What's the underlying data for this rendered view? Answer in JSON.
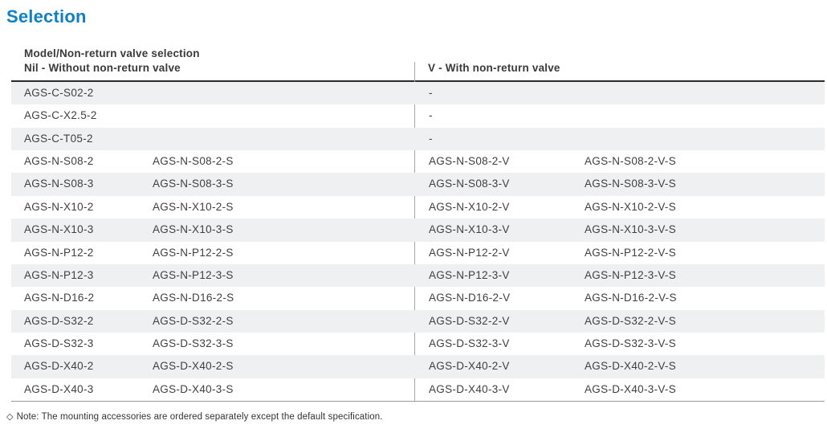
{
  "page": {
    "title": "Selection"
  },
  "table": {
    "header": {
      "left_line1": "Model/Non-return valve selection",
      "left_line2": "Nil - Without non-return valve",
      "right": "V - With non-return valve"
    },
    "rows": [
      {
        "c1": "AGS-C-S02-2",
        "c2": "",
        "c3": "-",
        "c4": ""
      },
      {
        "c1": "AGS-C-X2.5-2",
        "c2": "",
        "c3": "-",
        "c4": ""
      },
      {
        "c1": "AGS-C-T05-2",
        "c2": "",
        "c3": "-",
        "c4": ""
      },
      {
        "c1": "AGS-N-S08-2",
        "c2": "AGS-N-S08-2-S",
        "c3": "AGS-N-S08-2-V",
        "c4": "AGS-N-S08-2-V-S"
      },
      {
        "c1": "AGS-N-S08-3",
        "c2": "AGS-N-S08-3-S",
        "c3": "AGS-N-S08-3-V",
        "c4": "AGS-N-S08-3-V-S"
      },
      {
        "c1": "AGS-N-X10-2",
        "c2": "AGS-N-X10-2-S",
        "c3": "AGS-N-X10-2-V",
        "c4": "AGS-N-X10-2-V-S"
      },
      {
        "c1": "AGS-N-X10-3",
        "c2": "AGS-N-X10-3-S",
        "c3": "AGS-N-X10-3-V",
        "c4": "AGS-N-X10-3-V-S"
      },
      {
        "c1": "AGS-N-P12-2",
        "c2": "AGS-N-P12-2-S",
        "c3": "AGS-N-P12-2-V",
        "c4": "AGS-N-P12-2-V-S"
      },
      {
        "c1": "AGS-N-P12-3",
        "c2": "AGS-N-P12-3-S",
        "c3": "AGS-N-P12-3-V",
        "c4": "AGS-N-P12-3-V-S"
      },
      {
        "c1": "AGS-N-D16-2",
        "c2": "AGS-N-D16-2-S",
        "c3": "AGS-N-D16-2-V",
        "c4": "AGS-N-D16-2-V-S"
      },
      {
        "c1": "AGS-D-S32-2",
        "c2": "AGS-D-S32-2-S",
        "c3": "AGS-D-S32-2-V",
        "c4": "AGS-D-S32-2-V-S"
      },
      {
        "c1": "AGS-D-S32-3",
        "c2": "AGS-D-S32-3-S",
        "c3": "AGS-D-S32-3-V",
        "c4": "AGS-D-S32-3-V-S"
      },
      {
        "c1": "AGS-D-X40-2",
        "c2": "AGS-D-X40-2-S",
        "c3": "AGS-D-X40-2-V",
        "c4": "AGS-D-X40-2-V-S"
      },
      {
        "c1": "AGS-D-X40-3",
        "c2": "AGS-D-X40-3-S",
        "c3": "AGS-D-X40-3-V",
        "c4": "AGS-D-X40-3-V-S"
      }
    ]
  },
  "note": {
    "icon": "◇",
    "text": "Note: The mounting accessories are ordered separately except the default specification."
  },
  "colors": {
    "title_blue": "#0f80c4",
    "row_shade": "#eef0f1",
    "header_text": "#3a3a3a",
    "cell_text": "#404040",
    "table_top_border": "#2a2a2a",
    "table_bottom_border": "#9a9a9a",
    "column_divider": "#a6a6a6"
  }
}
